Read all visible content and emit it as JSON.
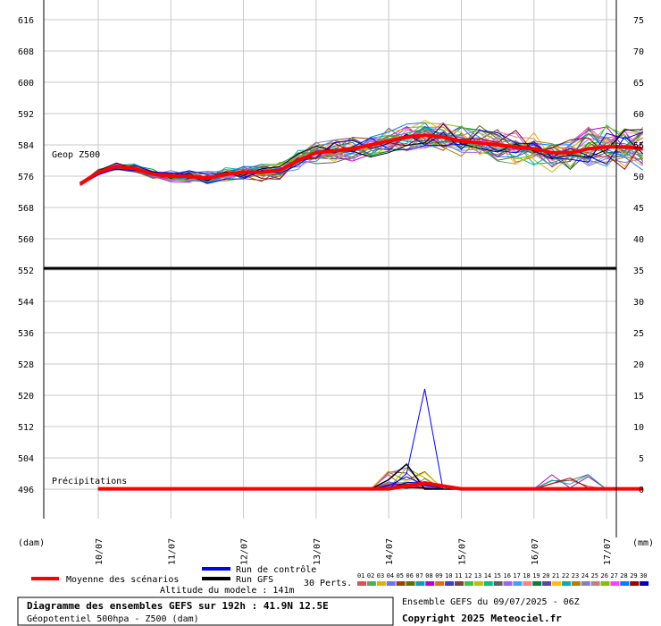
{
  "chart_data": {
    "type": "line",
    "panels": [
      {
        "name": "Geop Z500",
        "label": "Geop Z500",
        "yticks_left": [
          "616",
          "608",
          "600",
          "592",
          "584",
          "576",
          "568",
          "560",
          "552"
        ],
        "yticks_right": [
          "75",
          "70",
          "65",
          "60",
          "55",
          "50",
          "45",
          "40",
          "35"
        ],
        "ylim": [
          552,
          618
        ],
        "mean_series": {
          "name": "Moyenne des scénarios",
          "color": "#ff0000",
          "x": [
            "09/07 18h",
            "10/07 00h",
            "10/07 06h",
            "10/07 12h",
            "10/07 18h",
            "11/07 00h",
            "11/07 06h",
            "11/07 12h",
            "11/07 18h",
            "12/07 00h",
            "12/07 06h",
            "12/07 12h",
            "12/07 18h",
            "13/07 00h",
            "13/07 06h",
            "13/07 12h",
            "13/07 18h",
            "14/07 00h",
            "14/07 06h",
            "14/07 12h",
            "14/07 18h",
            "15/07 00h",
            "15/07 06h",
            "15/07 12h",
            "15/07 18h",
            "16/07 00h",
            "16/07 06h",
            "16/07 12h",
            "16/07 18h",
            "17/07 00h",
            "17/07 06h",
            "17/07 12h"
          ],
          "values": [
            574,
            577,
            578.5,
            578,
            576.5,
            576,
            576,
            575.5,
            576.5,
            577,
            577,
            577.5,
            580,
            582,
            582.5,
            583,
            584,
            585,
            586,
            586.5,
            586,
            585,
            584.5,
            584,
            583.5,
            583,
            582,
            582,
            583,
            583.5,
            583.5,
            583
          ]
        }
      },
      {
        "name": "Précipitations",
        "label": "Précipitations",
        "yticks_left": [
          "552",
          "544",
          "536",
          "528",
          "520",
          "512",
          "504",
          "496"
        ],
        "yticks_right": [
          "35",
          "30",
          "25",
          "20",
          "15",
          "10",
          "5",
          "0"
        ],
        "ylim_mm": [
          -8,
          35
        ],
        "peak": {
          "date": "14/07",
          "value_mm": 16,
          "member": "control"
        }
      }
    ],
    "x_ticks": [
      "10/07",
      "11/07",
      "12/07",
      "13/07",
      "14/07",
      "15/07",
      "16/07",
      "17/07"
    ],
    "x_unit_left": "(dam)",
    "x_unit_right": "(mm)",
    "member_count": 30,
    "grid": true
  },
  "legend": {
    "mean_label": "Moyenne des scénarios",
    "control_label": "Run de contrôle",
    "gfs_label": "Run GFS",
    "perts_label": "30 Perts.",
    "altitude": "Altitude du modele : 141m",
    "member_numbers": [
      "01",
      "02",
      "03",
      "04",
      "05",
      "06",
      "07",
      "08",
      "09",
      "10",
      "11",
      "12",
      "13",
      "14",
      "15",
      "16",
      "17",
      "18",
      "19",
      "20",
      "21",
      "22",
      "23",
      "24",
      "25",
      "26",
      "27",
      "28",
      "29",
      "30"
    ],
    "member_colors": [
      "#e05050",
      "#50b050",
      "#e0b000",
      "#7070ff",
      "#a04000",
      "#607000",
      "#00a0c0",
      "#c000c0",
      "#e07000",
      "#4040c0",
      "#804040",
      "#40c040",
      "#c0c000",
      "#00c080",
      "#606060",
      "#a060ff",
      "#40a0ff",
      "#ff8080",
      "#008040",
      "#6040a0",
      "#ffc000",
      "#00b0b0",
      "#b08000",
      "#8080c0",
      "#c08080",
      "#80c000",
      "#ff40ff",
      "#0080ff",
      "#a00000",
      "#0000c0"
    ]
  },
  "footer": {
    "title": "Diagramme des ensembles GEFS sur 192h : 41.9N 12.5E",
    "subtitle": "Géopotentiel 500hpa - Z500 (dam)",
    "run_info": "Ensemble GEFS du 09/07/2025 - 06Z",
    "copyright": "Copyright 2025 Meteociel.fr"
  },
  "colors": {
    "mean": "#ff0000",
    "control": "#0000ff",
    "gfs": "#000000",
    "grid": "#c8c8c8"
  }
}
